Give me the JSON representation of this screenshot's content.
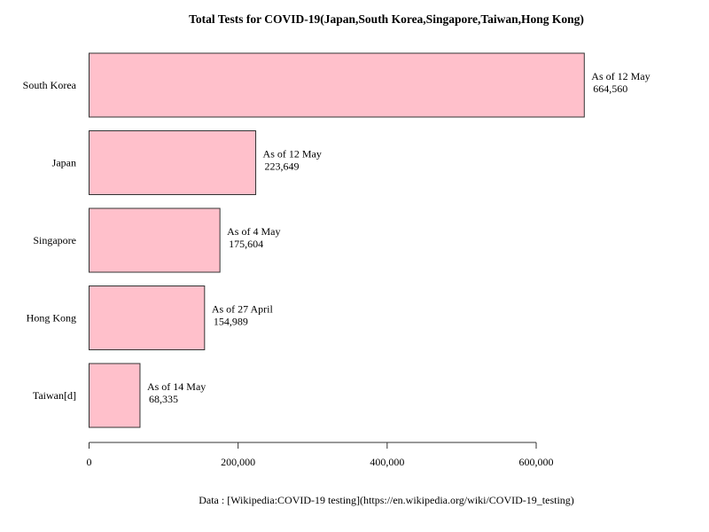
{
  "chart_data": {
    "type": "bar",
    "orientation": "horizontal",
    "title": "Total Tests for COVID-19(Japan,South Korea,Singapore,Taiwan,Hong Kong)",
    "xlabel": "",
    "ylabel": "",
    "categories": [
      "South Korea",
      "Japan",
      "Singapore",
      "Hong Kong",
      "Taiwan[d]"
    ],
    "values": [
      664560,
      223649,
      175604,
      154989,
      68335
    ],
    "annotations": [
      "As of 12 May",
      "As of 12 May",
      "As of 4 May",
      "As of 27 April",
      "As of 14 May"
    ],
    "value_labels": [
      "664,560",
      "223,649",
      "175,604",
      "154,989",
      "68,335"
    ],
    "xlim": [
      0,
      600000
    ],
    "xticks": [
      0,
      200000,
      400000,
      600000
    ],
    "xtick_labels": [
      "0",
      "200,000",
      "400,000",
      "600,000"
    ],
    "grid": false,
    "legend": "none",
    "bar_color": "#ffc0cb",
    "edge_color": "#333333",
    "caption": "Data : [Wikipedia:COVID-19 testing](https://en.wikipedia.org/wiki/COVID-19_testing)"
  }
}
